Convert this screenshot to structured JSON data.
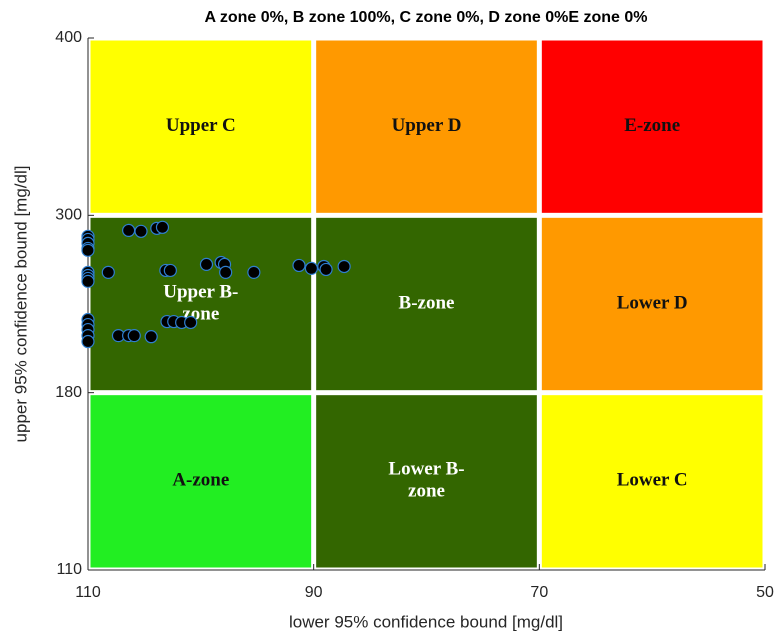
{
  "chart_data": {
    "type": "scatter",
    "title": "A zone 0%, B zone 100%, C zone 0%, D zone 0%E zone 0%",
    "xlabel": "lower 95% confidence bound [mg/dl]",
    "ylabel": "upper 95% confidence bound [mg/dl]",
    "xlim": [
      110,
      50
    ],
    "ylim": [
      110,
      400
    ],
    "xticks": [
      110,
      90,
      70,
      50
    ],
    "yticks": [
      110,
      180,
      300,
      400
    ],
    "marker_color": "#000000",
    "marker_edge": "#2f7fd0",
    "zones": [
      {
        "label": [
          "Upper C"
        ],
        "x": [
          110,
          90
        ],
        "y": [
          300,
          400
        ],
        "color": "#ffff00"
      },
      {
        "label": [
          "Upper D"
        ],
        "x": [
          90,
          70
        ],
        "y": [
          300,
          400
        ],
        "color": "#ff9900"
      },
      {
        "label": [
          "E-zone"
        ],
        "x": [
          70,
          50
        ],
        "y": [
          300,
          400
        ],
        "color": "#ff0000"
      },
      {
        "label": [
          "Upper B-",
          "zone"
        ],
        "x": [
          110,
          90
        ],
        "y": [
          180,
          300
        ],
        "color": "#336600"
      },
      {
        "label": [
          "B-zone"
        ],
        "x": [
          90,
          70
        ],
        "y": [
          180,
          300
        ],
        "color": "#336600"
      },
      {
        "label": [
          "Lower D"
        ],
        "x": [
          70,
          50
        ],
        "y": [
          180,
          300
        ],
        "color": "#ff9900"
      },
      {
        "label": [
          "A-zone"
        ],
        "x": [
          110,
          90
        ],
        "y": [
          110,
          180
        ],
        "color": "#22ee22"
      },
      {
        "label": [
          "Lower B-",
          "zone"
        ],
        "x": [
          90,
          70
        ],
        "y": [
          110,
          180
        ],
        "color": "#336600"
      },
      {
        "label": [
          "Lower C"
        ],
        "x": [
          70,
          50
        ],
        "y": [
          110,
          180
        ],
        "color": "#ffff00"
      }
    ],
    "x": [
      110,
      110,
      110,
      110,
      110,
      110,
      110,
      110,
      110,
      110,
      110,
      110,
      110,
      110,
      108.2,
      107.3,
      106.4,
      105.9,
      104.4,
      106.4,
      105.3,
      103.9,
      103.4,
      103.1,
      102.7,
      103.0,
      102.4,
      101.7,
      100.9,
      99.5,
      98.2,
      97.9,
      97.8,
      95.3,
      91.3,
      90.2,
      89.1,
      88.9,
      87.3
    ],
    "y": [
      285.8,
      283.7,
      281,
      277.6,
      276.3,
      261.4,
      259.3,
      257.3,
      255.3,
      229.5,
      226.1,
      222.7,
      218.6,
      214.6,
      261.4,
      218.6,
      218.6,
      218.6,
      217.9,
      289.8,
      289.2,
      291.2,
      291.9,
      262.7,
      262.7,
      228.1,
      228.1,
      227.5,
      227.5,
      266.8,
      268.1,
      266.8,
      261.4,
      261.4,
      266.1,
      264.1,
      265.4,
      263.4,
      265.4
    ]
  }
}
